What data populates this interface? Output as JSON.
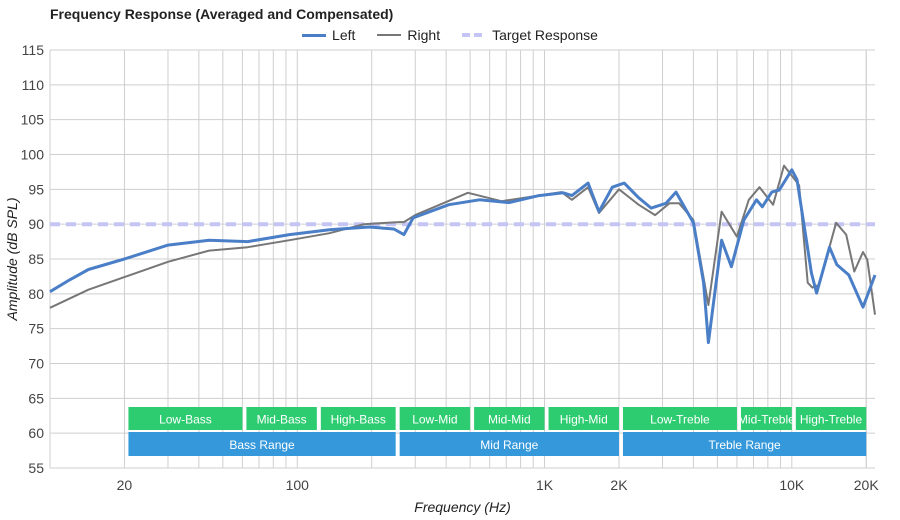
{
  "chart_data": {
    "type": "line",
    "title": "Frequency Response (Averaged and Compensated)",
    "xlabel": "Frequency (Hz)",
    "ylabel": "Amplitude (dB SPL)",
    "xscale": "log",
    "xlim": [
      10,
      21700
    ],
    "ylim": [
      55,
      115
    ],
    "yticks": [
      55,
      60,
      65,
      70,
      75,
      80,
      85,
      90,
      95,
      100,
      105,
      110,
      115
    ],
    "xticks": [
      {
        "v": 20,
        "label": "20"
      },
      {
        "v": 100,
        "label": "100"
      },
      {
        "v": 1000,
        "label": "1K"
      },
      {
        "v": 2000,
        "label": "2K"
      },
      {
        "v": 10000,
        "label": "10K"
      },
      {
        "v": 20000,
        "label": "20K"
      }
    ],
    "grid": true,
    "legend_position": "top-center",
    "series": [
      {
        "name": "Left",
        "color": "#4a7fc7",
        "points": [
          [
            10,
            80.3
          ],
          [
            12,
            82
          ],
          [
            14.3,
            83.5
          ],
          [
            20,
            85
          ],
          [
            30,
            87
          ],
          [
            44,
            87.7
          ],
          [
            63,
            87.5
          ],
          [
            93,
            88.5
          ],
          [
            135,
            89.2
          ],
          [
            195,
            89.6
          ],
          [
            246,
            89.3
          ],
          [
            270,
            88.5
          ],
          [
            294,
            90.9
          ],
          [
            410,
            92.8
          ],
          [
            545,
            93.5
          ],
          [
            720,
            93.1
          ],
          [
            950,
            94.1
          ],
          [
            1190,
            94.5
          ],
          [
            1290,
            94.1
          ],
          [
            1500,
            95.9
          ],
          [
            1660,
            91.8
          ],
          [
            1880,
            95.3
          ],
          [
            2100,
            95.9
          ],
          [
            2400,
            93.8
          ],
          [
            2700,
            92.3
          ],
          [
            3100,
            93
          ],
          [
            3400,
            94.6
          ],
          [
            4000,
            90.2
          ],
          [
            4400,
            81.6
          ],
          [
            4600,
            73
          ],
          [
            4900,
            80.6
          ],
          [
            5200,
            87.7
          ],
          [
            5700,
            83.9
          ],
          [
            6400,
            90.6
          ],
          [
            7200,
            93.5
          ],
          [
            7600,
            92.5
          ],
          [
            8300,
            94.6
          ],
          [
            8900,
            94.9
          ],
          [
            10000,
            97.8
          ],
          [
            10500,
            96.4
          ],
          [
            11500,
            87.3
          ],
          [
            12000,
            83
          ],
          [
            12600,
            80.1
          ],
          [
            14200,
            86.7
          ],
          [
            15200,
            84.2
          ],
          [
            17000,
            82.7
          ],
          [
            19400,
            78.1
          ],
          [
            21700,
            82.7
          ]
        ]
      },
      {
        "name": "Right",
        "color": "#777777",
        "points": [
          [
            10,
            78
          ],
          [
            14.3,
            80.6
          ],
          [
            20,
            82.4
          ],
          [
            30,
            84.6
          ],
          [
            44,
            86.2
          ],
          [
            63,
            86.7
          ],
          [
            93,
            87.7
          ],
          [
            135,
            88.7
          ],
          [
            186,
            90
          ],
          [
            257,
            90.3
          ],
          [
            270,
            90.3
          ],
          [
            300,
            91.3
          ],
          [
            490,
            94.5
          ],
          [
            670,
            93.3
          ],
          [
            1170,
            94.6
          ],
          [
            1290,
            93.5
          ],
          [
            1500,
            95.3
          ],
          [
            1660,
            91.6
          ],
          [
            2000,
            95
          ],
          [
            2400,
            92.8
          ],
          [
            2800,
            91.3
          ],
          [
            3200,
            93
          ],
          [
            3500,
            93
          ],
          [
            4000,
            90.6
          ],
          [
            4600,
            78.4
          ],
          [
            5200,
            91.8
          ],
          [
            6000,
            88.2
          ],
          [
            6700,
            93.5
          ],
          [
            7400,
            95.3
          ],
          [
            8400,
            92.8
          ],
          [
            9300,
            98.4
          ],
          [
            10700,
            95.6
          ],
          [
            11600,
            81.6
          ],
          [
            12100,
            80.9
          ],
          [
            12900,
            81.3
          ],
          [
            15100,
            90.2
          ],
          [
            16600,
            88.5
          ],
          [
            17900,
            83.2
          ],
          [
            19400,
            86
          ],
          [
            20200,
            84.9
          ],
          [
            21700,
            77
          ]
        ]
      },
      {
        "name": "Target Response",
        "color": "#c4c4f5",
        "points": [
          [
            10,
            90
          ],
          [
            21700,
            90
          ]
        ]
      }
    ],
    "ranges_top": [
      {
        "label": "Low-Bass",
        "from": 20,
        "to": 60
      },
      {
        "label": "Mid-Bass",
        "from": 60,
        "to": 120
      },
      {
        "label": "High-Bass",
        "from": 120,
        "to": 250
      },
      {
        "label": "Low-Mid",
        "from": 250,
        "to": 500
      },
      {
        "label": "Mid-Mid",
        "from": 500,
        "to": 1000
      },
      {
        "label": "High-Mid",
        "from": 1000,
        "to": 2000
      },
      {
        "label": "Low-Treble",
        "from": 2000,
        "to": 6000
      },
      {
        "label": "Mid-Treble",
        "from": 6000,
        "to": 10000
      },
      {
        "label": "High-Treble",
        "from": 10000,
        "to": 20000
      }
    ],
    "ranges_bottom": [
      {
        "label": "Bass Range",
        "from": 20,
        "to": 250
      },
      {
        "label": "Mid Range",
        "from": 250,
        "to": 2000
      },
      {
        "label": "Treble Range",
        "from": 2000,
        "to": 20000
      }
    ],
    "colors": {
      "top_band": "#2ecc71",
      "bottom_band": "#3498db"
    }
  }
}
